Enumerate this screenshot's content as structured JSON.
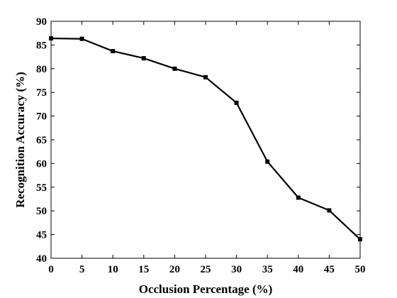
{
  "chart_data": {
    "type": "line",
    "title": "",
    "xlabel": "Occlusion Percentage (%)",
    "ylabel": "Recognition Accuracy (%)",
    "xlim": [
      0,
      50
    ],
    "ylim": [
      40,
      90
    ],
    "xticks": [
      "0",
      "5",
      "10",
      "15",
      "20",
      "25",
      "30",
      "35",
      "40",
      "45",
      "50"
    ],
    "yticks": [
      "40",
      "45",
      "50",
      "55",
      "60",
      "65",
      "70",
      "75",
      "80",
      "85",
      "90"
    ],
    "grid": false,
    "legend": "none",
    "x": [
      0,
      5,
      10,
      15,
      20,
      25,
      30,
      35,
      40,
      45,
      50
    ],
    "series": [
      {
        "color": "#000000",
        "marker": "square",
        "values": [
          86.4,
          86.3,
          83.7,
          82.2,
          80.0,
          78.2,
          72.8,
          60.4,
          52.8,
          50.1,
          44.0
        ]
      }
    ]
  }
}
